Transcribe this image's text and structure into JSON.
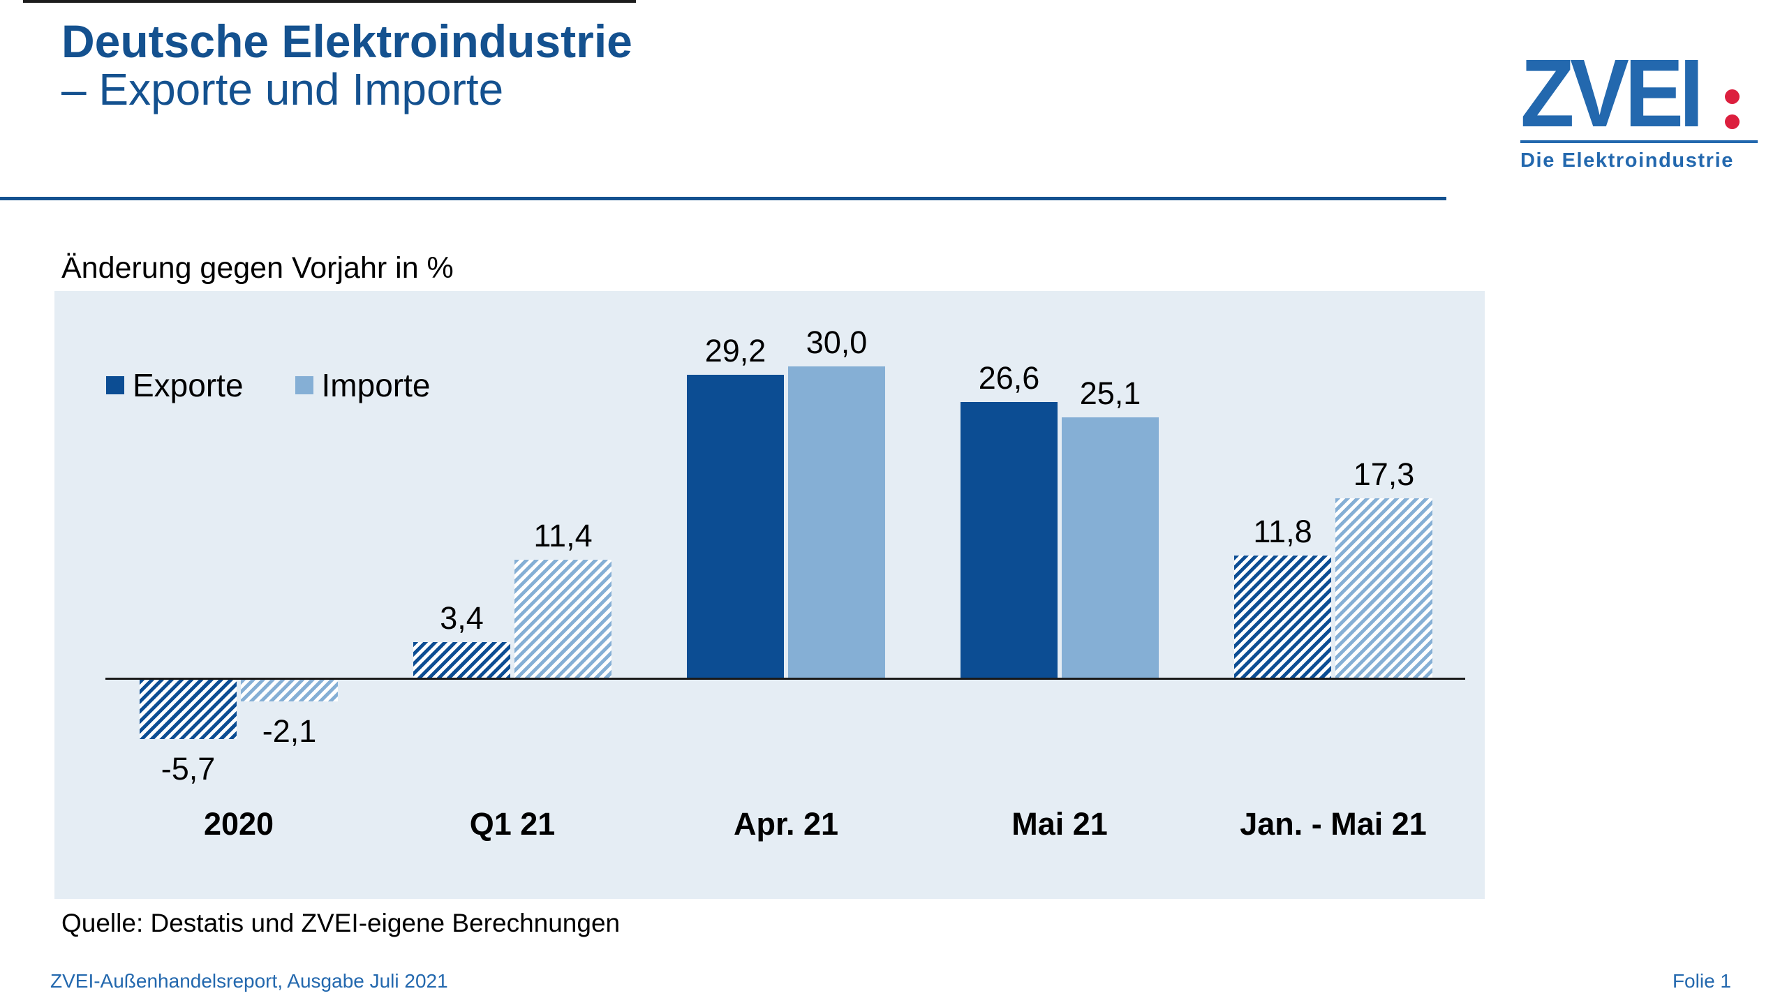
{
  "header": {
    "title_line1": "Deutsche Elektroindustrie",
    "title_line2": "– Exporte und Importe"
  },
  "logo": {
    "text": "ZVEI",
    "tagline": "Die Elektroindustrie",
    "blue": "#2368AE",
    "red": "#DC1F3E"
  },
  "footer": {
    "source": "Quelle: Destatis und ZVEI-eigene Berechnungen",
    "left": "ZVEI-Außenhandelsreport, Ausgabe Juli 2021",
    "right": "Folie 1"
  },
  "colors": {
    "title_blue": "#14518F",
    "export_bar": "#0C4D93",
    "import_bar": "#85AFD5",
    "chart_background": "#E5EDF4",
    "axis": "#1a1a1a"
  },
  "chart_data": {
    "type": "bar",
    "title": "Änderung gegen Vorjahr in %",
    "categories": [
      "2020",
      "Q1 21",
      "Apr. 21",
      "Mai 21",
      "Jan. - Mai 21"
    ],
    "series": [
      {
        "name": "Exporte",
        "values": [
          -5.7,
          3.4,
          29.2,
          26.6,
          11.8
        ],
        "labels": [
          "-5,7",
          "3,4",
          "29,2",
          "26,6",
          "11,8"
        ],
        "color": "#0C4D93"
      },
      {
        "name": "Importe",
        "values": [
          -2.1,
          11.4,
          30.0,
          25.1,
          17.3
        ],
        "labels": [
          "-2,1",
          "11,4",
          "30,0",
          "25,1",
          "17,3"
        ],
        "color": "#85AFD5"
      }
    ],
    "hatched_categories": [
      true,
      true,
      false,
      false,
      true
    ],
    "ylim": [
      -21,
      37.5
    ],
    "grid": false,
    "legend_position": "top-left",
    "value_decimal_separator": ","
  }
}
